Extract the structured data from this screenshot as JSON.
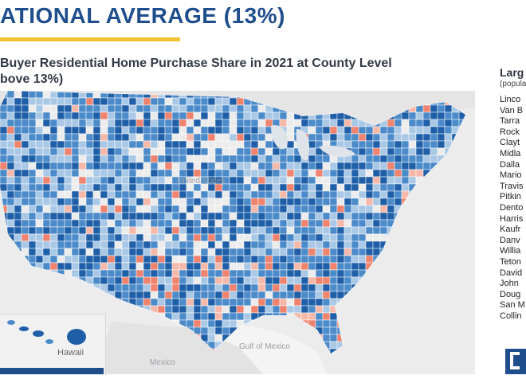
{
  "header": {
    "title": "ATIONAL AVERAGE (13%)",
    "title_color": "#1f4e8c",
    "underline_color": "#f2c230"
  },
  "map_title": {
    "line1": "Buyer Residential Home Purchase Share in 2021 at County Level",
    "line2": "bove 13%)"
  },
  "map": {
    "water_label": "Hawaii",
    "region_labels": [
      "United States",
      "Gulf of Mexico",
      "Mexico"
    ],
    "colors": {
      "above_average_dark": "#1f5fa8",
      "above_average_mid": "#4c8bc9",
      "above_average_light": "#a9c8e6",
      "below_average": "#f0836e",
      "below_average_light": "#f6b9a9",
      "no_data": "#ececec"
    }
  },
  "legend": {
    "title": "Larg",
    "subtitle": "(popula",
    "counties": [
      "Linco",
      "Van B",
      "Tarra",
      "Rock",
      "Clayt",
      "Midla",
      "Dalla",
      "Mario",
      "Travis",
      "Pitkin",
      "Dento",
      "Harris",
      "Kaufr",
      "Danv",
      "Willia",
      "Teton",
      "David",
      "John",
      "Doug",
      "San M",
      "Collin"
    ]
  },
  "footer": {
    "band_color": "#1f4e8c",
    "logo_color": "#1f4e8c"
  }
}
